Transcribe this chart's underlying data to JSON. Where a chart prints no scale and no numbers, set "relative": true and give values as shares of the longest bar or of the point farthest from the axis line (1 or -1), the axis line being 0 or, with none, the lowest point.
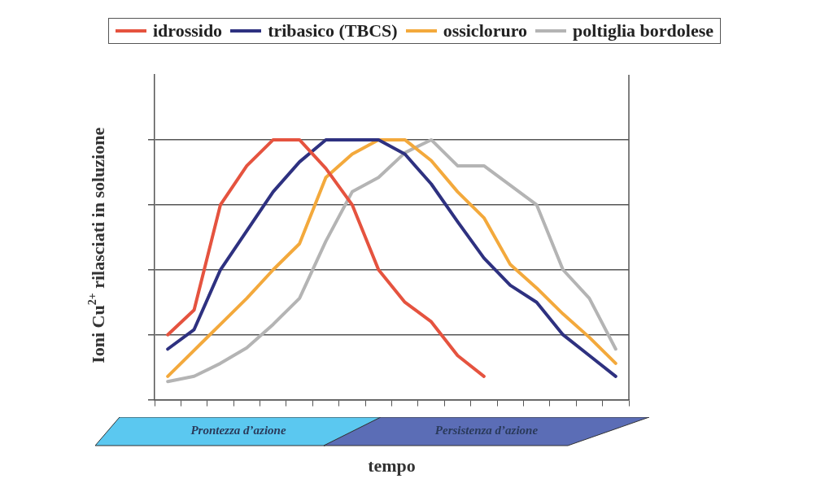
{
  "chart_data": {
    "type": "line",
    "relative": true,
    "xlabel": "tempo",
    "ylabel": "Ioni Cu$^{2+}$ rilasciati in soluzione",
    "categories": [
      null,
      null,
      null,
      null,
      null,
      null,
      null,
      null,
      null,
      null,
      null,
      null,
      null,
      null,
      null,
      null,
      null,
      null
    ],
    "series": [
      {
        "name": "idrossido",
        "color": "#e5533f",
        "values": [
          0.25,
          0.345,
          0.75,
          0.9,
          1,
          1,
          0.89,
          0.75,
          0.5,
          0.375,
          0.3,
          0.17,
          0.09,
          null,
          null,
          null,
          null,
          null
        ]
      },
      {
        "name": "tribasico (TBCS)",
        "color": "#2e3180",
        "values": [
          0.195,
          0.27,
          0.5,
          0.65,
          0.8,
          0.915,
          1,
          1,
          1,
          0.945,
          0.83,
          0.685,
          0.545,
          0.44,
          0.375,
          0.25,
          0.17,
          0.09
        ]
      },
      {
        "name": "ossicloruro",
        "color": "#f3a93c",
        "values": [
          0.09,
          0.19,
          0.29,
          0.39,
          0.5,
          0.6,
          0.855,
          0.945,
          1,
          1,
          0.92,
          0.8,
          0.7,
          0.52,
          0.43,
          0.33,
          0.24,
          0.14
        ]
      },
      {
        "name": "poltiglia bordolese",
        "color": "#b4b4b4",
        "values": [
          0.07,
          0.09,
          0.14,
          0.2,
          0.29,
          0.39,
          0.61,
          0.8,
          0.855,
          0.95,
          1,
          0.9,
          0.9,
          0.825,
          0.75,
          0.5,
          0.39,
          0.195
        ]
      }
    ],
    "annotations": [
      "Prontezza d’azione",
      "Persistenza d’azione"
    ],
    "grid": "y",
    "legend": "top",
    "line_style": "solid",
    "marker": "none"
  }
}
